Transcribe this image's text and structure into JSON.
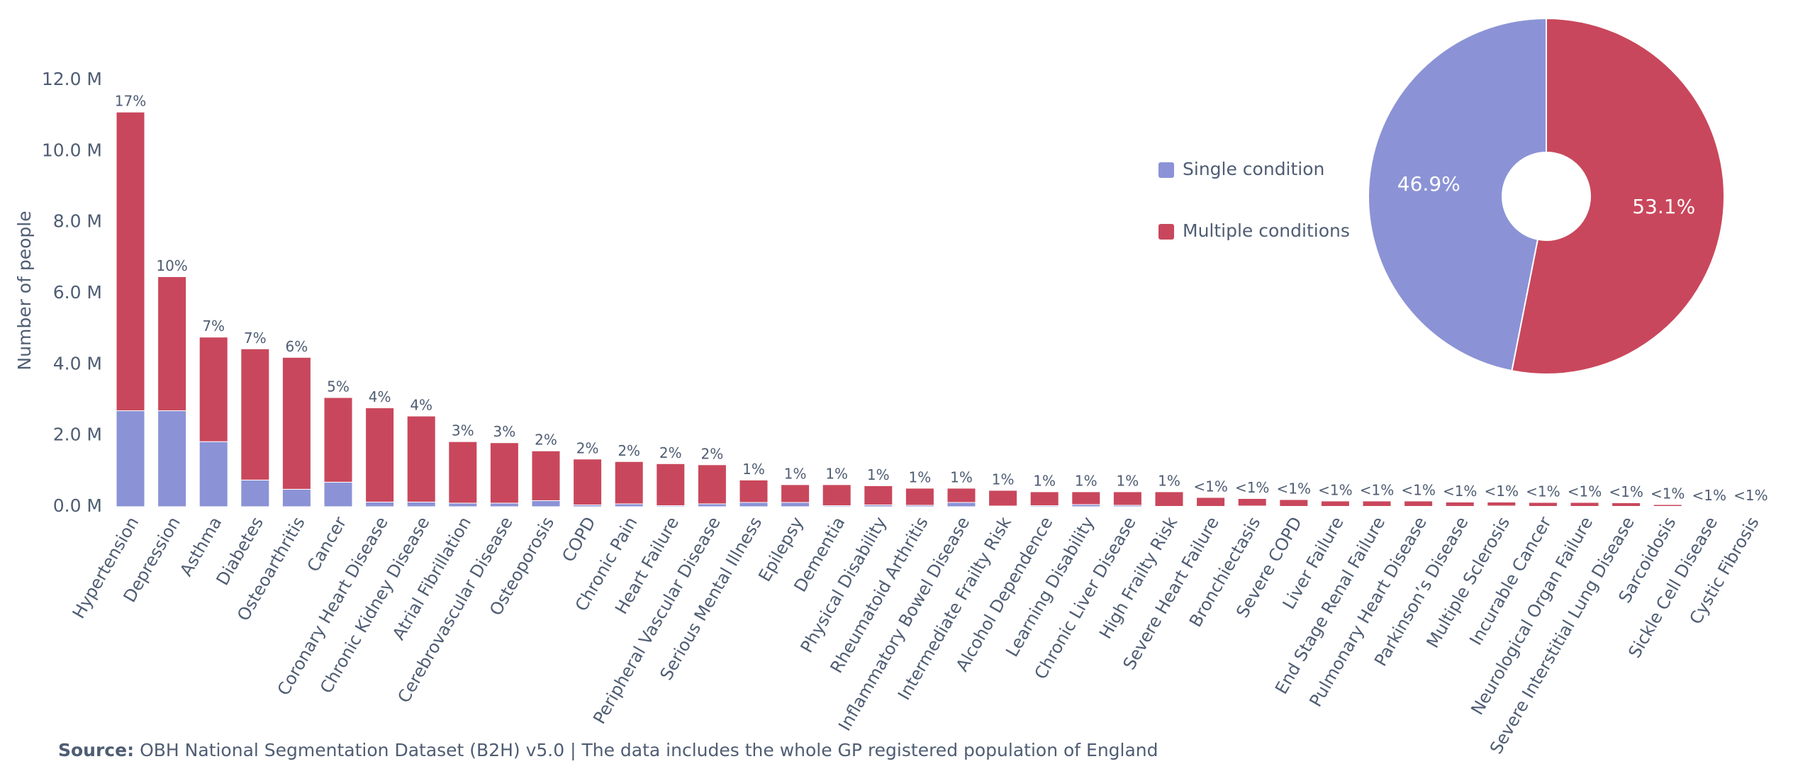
{
  "chart_data": [
    {
      "type": "bar",
      "y_label": "Number of people",
      "categories": [
        "Hypertension",
        "Depression",
        "Asthma",
        "Diabetes",
        "Osteoarthritis",
        "Cancer",
        "Coronary Heart Disease",
        "Chronic Kidney Disease",
        "Atrial Fibrillation",
        "Cerebrovascular Disease",
        "Osteoporosis",
        "COPD",
        "Chronic Pain",
        "Heart Failure",
        "Peripheral Vascular Disease",
        "Serious Mental Illness",
        "Epilepsy",
        "Dementia",
        "Physical Disability",
        "Rheumatoid Arthritis",
        "Inflammatory Bowel Disease",
        "Intermediate Frailty Risk",
        "Alcohol Dependence",
        "Learning Disability",
        "Chronic Liver Disease",
        "High Frailty Risk",
        "Severe Heart Failure",
        "Bronchiectasis",
        "Severe COPD",
        "Liver Failure",
        "End Stage Renal Failure",
        "Pulmonary Heart Disease",
        "Parkinson’s Disease",
        "Multiple Sclerosis",
        "Incurable Cancer",
        "Neurological Organ Failure",
        "Severe Interstitial Lung Disease",
        "Sarcoidosis",
        "Sickle Cell Disease",
        "Cystic Fibrosis"
      ],
      "series": [
        {
          "name": "Single condition",
          "color": "#8b93d6",
          "values": [
            2700000,
            2700000,
            1830000,
            750000,
            490000,
            690000,
            130000,
            130000,
            100000,
            100000,
            170000,
            50000,
            80000,
            30000,
            80000,
            120000,
            120000,
            30000,
            50000,
            40000,
            120000,
            20000,
            30000,
            60000,
            40000,
            10000,
            10000,
            20000,
            10000,
            10000,
            10000,
            10000,
            10000,
            20000,
            10000,
            10000,
            10000,
            10000,
            2000,
            2000
          ]
        },
        {
          "name": "Multiple conditions",
          "color": "#c9475c",
          "values": [
            8400000,
            3770000,
            2940000,
            3690000,
            3710000,
            2380000,
            2650000,
            2420000,
            1730000,
            1700000,
            1400000,
            1290000,
            1190000,
            1180000,
            1100000,
            630000,
            500000,
            590000,
            540000,
            480000,
            400000,
            440000,
            390000,
            360000,
            380000,
            410000,
            250000,
            210000,
            190000,
            150000,
            150000,
            150000,
            120000,
            110000,
            110000,
            110000,
            100000,
            50000,
            8000,
            8000
          ]
        }
      ],
      "bar_labels": [
        "17%",
        "10%",
        "7%",
        "7%",
        "6%",
        "5%",
        "4%",
        "4%",
        "3%",
        "3%",
        "2%",
        "2%",
        "2%",
        "2%",
        "2%",
        "1%",
        "1%",
        "1%",
        "1%",
        "1%",
        "1%",
        "1%",
        "1%",
        "1%",
        "1%",
        "1%",
        "<1%",
        "<1%",
        "<1%",
        "<1%",
        "<1%",
        "<1%",
        "<1%",
        "<1%",
        "<1%",
        "<1%",
        "<1%",
        "<1%",
        "<1%",
        "<1%"
      ],
      "ylim": [
        0,
        12000000
      ],
      "yticks": [
        {
          "value": 0,
          "label": "0.0 M"
        },
        {
          "value": 2000000,
          "label": "2.0 M"
        },
        {
          "value": 4000000,
          "label": "4.0 M"
        },
        {
          "value": 6000000,
          "label": "6.0 M"
        },
        {
          "value": 8000000,
          "label": "8.0 M"
        },
        {
          "value": 10000000,
          "label": "10.0 M"
        },
        {
          "value": 12000000,
          "label": "12.0 M"
        }
      ],
      "grid": false
    },
    {
      "type": "pie",
      "categories": [
        "Single condition",
        "Multiple conditions"
      ],
      "colors": [
        "#8b93d6",
        "#c9475c"
      ],
      "values": [
        46.9,
        53.1
      ],
      "value_labels": [
        "46.9%",
        "53.1%"
      ],
      "legend": "left"
    }
  ],
  "footer": {
    "label": "Source:",
    "text": "OBH National Segmentation Dataset (B2H) v5.0 | The data includes the whole GP registered population of England"
  }
}
